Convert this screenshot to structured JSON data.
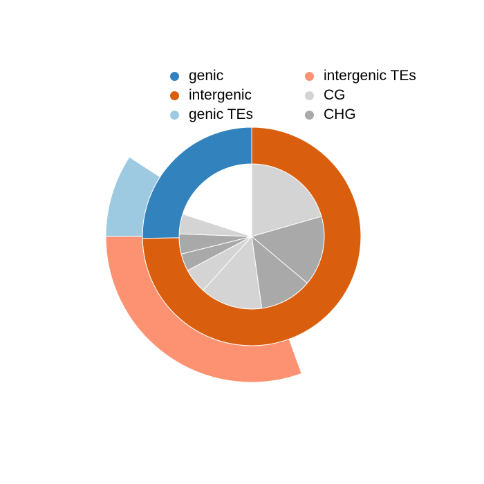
{
  "chart_data": {
    "type": "pie",
    "title": "",
    "rings": [
      {
        "ring": "inner",
        "slices": [
          {
            "label": "CG",
            "value": 0.2055
          },
          {
            "label": "CHG",
            "value": 0.1556
          },
          {
            "label": "CHG",
            "value": 0.1167
          },
          {
            "label": "CG",
            "value": 0.1389
          },
          {
            "label": "CG",
            "value": 0.0556
          },
          {
            "label": "CHG",
            "value": 0.0389
          },
          {
            "label": "CHG",
            "value": 0.0444
          },
          {
            "label": "CG",
            "value": 0.0444
          }
        ]
      },
      {
        "ring": "middle",
        "slices": [
          {
            "label": "intergenic",
            "value": 0.7472
          },
          {
            "label": "genic",
            "value": 0.2528
          }
        ]
      },
      {
        "ring": "outer",
        "slices": [
          {
            "label": "intergenic TEs",
            "value": 0.3056
          },
          {
            "label": "genic TEs",
            "value": 0.0917
          }
        ],
        "start_fraction": 0.4444
      }
    ],
    "legend": {
      "placement": "top",
      "entries": [
        {
          "label": "genic",
          "color": "#3182bd"
        },
        {
          "label": "intergenic TEs",
          "color": "#fc9272"
        },
        {
          "label": "intergenic",
          "color": "#d95f0e"
        },
        {
          "label": "CG",
          "color": "#d4d4d4"
        },
        {
          "label": "genic TEs",
          "color": "#9ecae1"
        },
        {
          "label": "CHG",
          "color": "#a9a9a9"
        }
      ]
    },
    "colors": {
      "genic": "#3182bd",
      "intergenic": "#d95f0e",
      "genic TEs": "#9ecae1",
      "intergenic TEs": "#fc9272",
      "CG": "#d4d4d4",
      "CHG": "#a9a9a9"
    }
  }
}
